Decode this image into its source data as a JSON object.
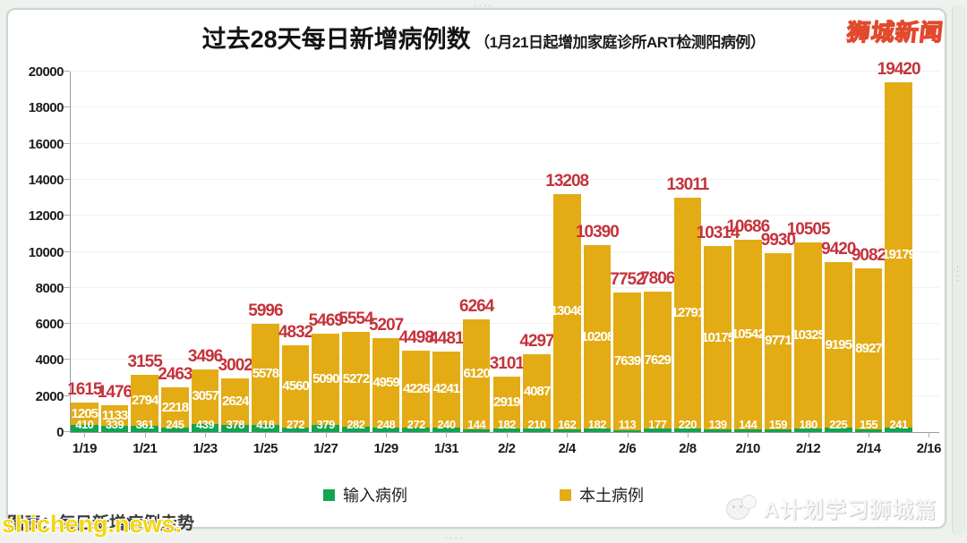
{
  "header": {
    "title": "过去28天每日新增病例数",
    "subtitle": "（1月21日起增加家庭诊所ART检测阳病例）",
    "brand": "狮城新闻"
  },
  "chart_data": {
    "type": "bar",
    "stacked": true,
    "title": "过去28天每日新增病例数",
    "xlabel": "",
    "ylabel": "",
    "ylim": [
      0,
      20000
    ],
    "y_ticks": [
      0,
      2000,
      4000,
      6000,
      8000,
      10000,
      12000,
      14000,
      16000,
      18000,
      20000
    ],
    "x_tick_labels": [
      "1/19",
      "1/21",
      "1/23",
      "1/25",
      "1/27",
      "1/29",
      "1/31",
      "2/2",
      "2/4",
      "2/6",
      "2/8",
      "2/10",
      "2/12",
      "2/14",
      "2/16"
    ],
    "grid": true,
    "legend_position": "bottom",
    "series": [
      {
        "name": "输入病例",
        "color": "#12a452",
        "values": [
          410,
          339,
          361,
          245,
          439,
          378,
          418,
          272,
          379,
          282,
          248,
          272,
          240,
          144,
          182,
          210,
          162,
          182,
          113,
          177,
          220,
          139,
          144,
          159,
          180,
          225,
          155,
          241
        ]
      },
      {
        "name": "本土病例",
        "color": "#e3ac15",
        "values": [
          1205,
          1133,
          2794,
          2218,
          3057,
          2624,
          5578,
          4560,
          5090,
          5272,
          4959,
          4226,
          4241,
          6120,
          2919,
          4087,
          13046,
          10208,
          7639,
          7629,
          12791,
          10175,
          10542,
          9771,
          10325,
          9195,
          8927,
          19179
        ]
      }
    ],
    "totals": [
      1615,
      1476,
      3155,
      2463,
      3496,
      3002,
      5996,
      4832,
      5469,
      5554,
      5207,
      4498,
      4481,
      6264,
      3101,
      4297,
      13208,
      10390,
      7752,
      7806,
      13011,
      10314,
      10686,
      9930,
      10505,
      9420,
      9082,
      19420
    ],
    "total_label_color": "#c5333c"
  },
  "legend": {
    "imported_label": "输入病例",
    "local_label": "本土病例"
  },
  "watermarks": {
    "bottom_left_overlay": "shicheng.news.",
    "bottom_left_under": "图表：每日新增病例走势",
    "bottom_right": "A计划学习狮城篇"
  },
  "colors": {
    "local_bar": "#e3ac15",
    "imported_bar": "#12a452",
    "total_label": "#c5333c",
    "brand_fill": "#ffe94f",
    "brand_stroke": "#e2492e"
  }
}
